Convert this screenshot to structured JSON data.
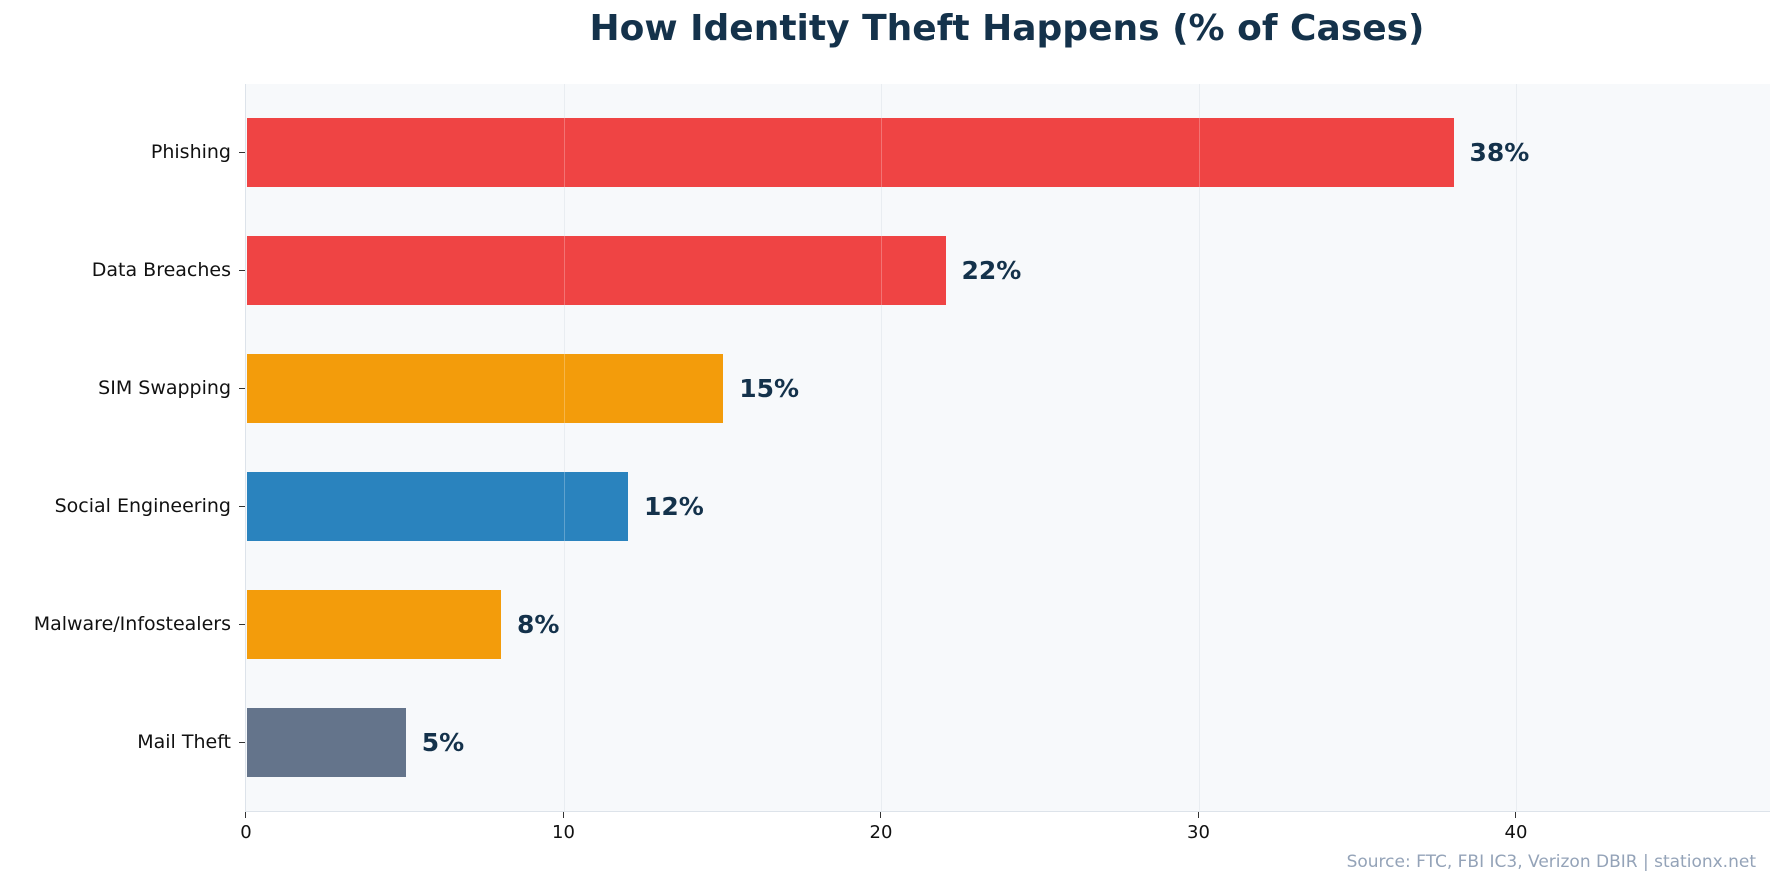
{
  "title": "How Identity Theft Happens (% of Cases)",
  "source": "Source: FTC, FBI IC3, Verizon DBIR | stationx.net",
  "chart_data": {
    "type": "bar",
    "orientation": "horizontal",
    "title": "How Identity Theft Happens (% of Cases)",
    "xlabel": "",
    "ylabel": "",
    "xlim": [
      0,
      48
    ],
    "x_ticks": [
      0,
      10,
      20,
      30,
      40
    ],
    "grid": "vertical",
    "categories": [
      "Phishing",
      "Data Breaches",
      "SIM Swapping",
      "Social Engineering",
      "Malware/Infostealers",
      "Mail Theft"
    ],
    "values": [
      38,
      22,
      15,
      12,
      8,
      5
    ],
    "labels": [
      "38%",
      "22%",
      "15%",
      "12%",
      "8%",
      "5%"
    ],
    "colors": [
      "#ef4444",
      "#ef4444",
      "#f39c0b",
      "#2a83be",
      "#f39c0b",
      "#64748b"
    ],
    "annotation": "Source: FTC, FBI IC3, Verizon DBIR | stationx.net"
  }
}
